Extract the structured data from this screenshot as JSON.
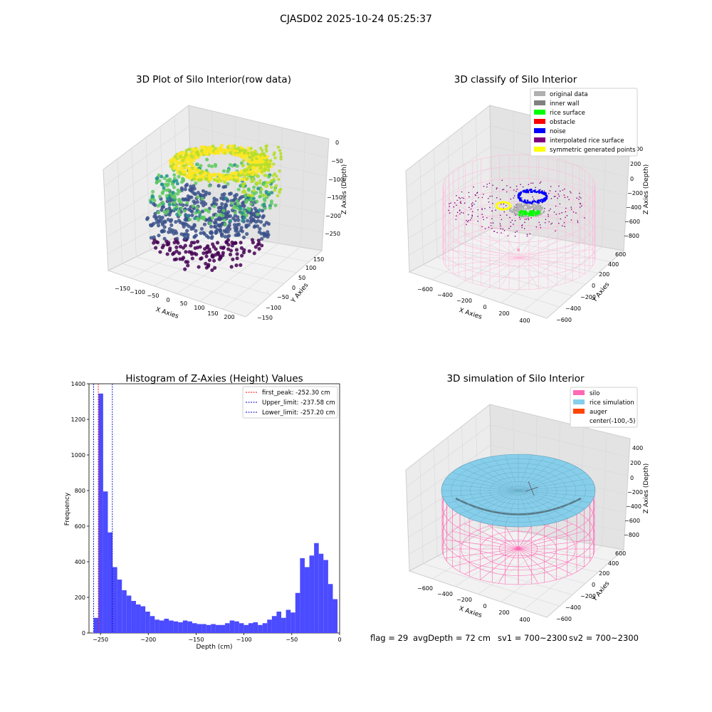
{
  "figure_title": "CJASD02 2025-10-24 05:25:37",
  "status_line": {
    "flag": "flag = 29",
    "avg_depth": "avgDepth = 72 cm",
    "sv1": "sv1 = 700~2300",
    "sv2": "sv2 = 700~2300"
  },
  "colors": {
    "hist_bar": "#4b4bff",
    "first_peak": "#ff0000",
    "limits": "#0000cc",
    "silo": "#ff69b4",
    "rice_simulation": "#87ceeb",
    "auger": "#ff4500",
    "original": "#b0b0b0",
    "inner_wall": "#808080",
    "rice_surface": "#00ff00",
    "obstacle": "#ff0000",
    "noise": "#0000ff",
    "interpolated": "#800080",
    "symmetric": "#ffff00"
  },
  "chart_data": [
    {
      "type": "scatter",
      "title": "3D Plot of Silo Interior(row data)",
      "xlabel": "X Axies",
      "ylabel": "Y Axies",
      "zlabel": "Z Axies (Depth)",
      "x_ticks": [
        "−150",
        "−100",
        "−50",
        "0",
        "50",
        "100",
        "150",
        "200"
      ],
      "y_ticks": [
        "−150",
        "−100",
        "−50",
        "0",
        "50",
        "100",
        "150"
      ],
      "z_ticks": [
        "0",
        "−50",
        "−100",
        "−150",
        "−200",
        "−250"
      ],
      "colormap": "viridis"
    },
    {
      "type": "scatter",
      "title": "3D classify of Silo Interior",
      "xlabel": "X Axies",
      "ylabel": "Y Axies",
      "zlabel": "Z Axies (Depth)",
      "x_ticks": [
        "−600",
        "−400",
        "−200",
        "0",
        "200",
        "400"
      ],
      "y_ticks": [
        "−600",
        "−400",
        "−200",
        "0",
        "200",
        "400",
        "600"
      ],
      "z_ticks": [
        "400",
        "200",
        "0",
        "−200",
        "−400",
        "−600",
        "−800"
      ],
      "legend": [
        "original data",
        "inner wall",
        "rice surface",
        "obstacle",
        "noise",
        "interpolated rice surface",
        "symmetric generated points"
      ],
      "legend_position": "top-right"
    },
    {
      "type": "bar",
      "title": "Histogram of Z-Axies (Height) Values",
      "xlabel": "Depth (cm)",
      "ylabel": "Frequency",
      "xlim": [
        -262,
        0
      ],
      "ylim": [
        0,
        1400
      ],
      "x_ticks": [
        -250,
        -200,
        -150,
        -100,
        -50,
        0
      ],
      "y_ticks": [
        0,
        200,
        400,
        600,
        800,
        1000,
        1200,
        1400
      ],
      "bin_start": -257,
      "bin_width": 4.9,
      "values": [
        85,
        1345,
        795,
        565,
        370,
        300,
        240,
        210,
        180,
        160,
        150,
        120,
        95,
        75,
        70,
        80,
        70,
        65,
        60,
        70,
        65,
        55,
        50,
        50,
        45,
        50,
        45,
        45,
        55,
        70,
        65,
        55,
        45,
        55,
        60,
        45,
        55,
        75,
        95,
        120,
        85,
        130,
        115,
        225,
        420,
        370,
        435,
        505,
        445,
        410,
        275,
        190
      ],
      "vlines": [
        {
          "label": "first_peak: -252.30 cm",
          "x": -252.3,
          "style": "red"
        },
        {
          "label": "Upper_limit: -237.58 cm",
          "x": -237.58,
          "style": "blue"
        },
        {
          "label": "Lower_limit: -257.20 cm",
          "x": -257.2,
          "style": "blue"
        }
      ],
      "legend_position": "top-right"
    },
    {
      "type": "surface",
      "title": "3D simulation of Silo Interior",
      "xlabel": "X Axies",
      "ylabel": "Y Axies",
      "zlabel": "Z Axies (Depth)",
      "x_ticks": [
        "−600",
        "−400",
        "−200",
        "0",
        "200",
        "400"
      ],
      "y_ticks": [
        "−600",
        "−400",
        "−200",
        "0",
        "200",
        "400",
        "600"
      ],
      "z_ticks": [
        "400",
        "200",
        "0",
        "−200",
        "−400",
        "−600",
        "−800"
      ],
      "legend": [
        "silo",
        "rice simulation",
        "auger",
        "center(-100,-5)"
      ],
      "legend_position": "top-right"
    }
  ]
}
